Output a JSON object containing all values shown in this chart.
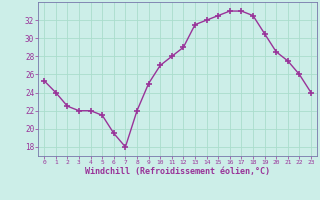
{
  "x": [
    0,
    1,
    2,
    3,
    4,
    5,
    6,
    7,
    8,
    9,
    10,
    11,
    12,
    13,
    14,
    15,
    16,
    17,
    18,
    19,
    20,
    21,
    22,
    23
  ],
  "y": [
    25.3,
    24.0,
    22.5,
    22.0,
    22.0,
    21.5,
    19.5,
    18.0,
    22.0,
    25.0,
    27.0,
    28.0,
    29.0,
    31.5,
    32.0,
    32.5,
    33.0,
    33.0,
    32.5,
    30.5,
    28.5,
    27.5,
    26.0,
    24.0
  ],
  "line_color": "#993399",
  "marker": "+",
  "marker_size": 4,
  "marker_lw": 1.2,
  "bg_color": "#cceee8",
  "grid_color": "#aaddcc",
  "xlabel": "Windchill (Refroidissement éolien,°C)",
  "xlabel_color": "#993399",
  "tick_color": "#993399",
  "ylim": [
    17,
    34
  ],
  "yticks": [
    18,
    20,
    22,
    24,
    26,
    28,
    30,
    32
  ],
  "xlim": [
    -0.5,
    23.5
  ],
  "xticks": [
    0,
    1,
    2,
    3,
    4,
    5,
    6,
    7,
    8,
    9,
    10,
    11,
    12,
    13,
    14,
    15,
    16,
    17,
    18,
    19,
    20,
    21,
    22,
    23
  ],
  "spine_color": "#7777aa",
  "line_width": 1.0
}
